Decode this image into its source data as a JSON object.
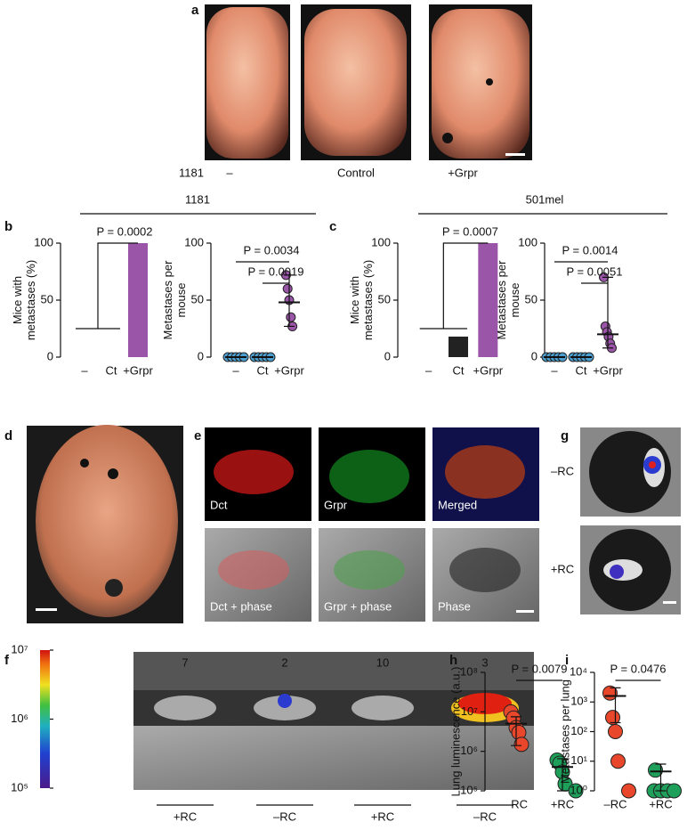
{
  "figure": {
    "panels": [
      "a",
      "b",
      "c",
      "d",
      "e",
      "f",
      "g",
      "h",
      "i"
    ],
    "a_labels": [
      "1181",
      "–",
      "Control",
      "+Grpr"
    ],
    "groups": [
      "1181",
      "501mel"
    ],
    "e_labels": [
      "Dct",
      "Grpr",
      "Merged",
      "Dct + phase",
      "Grpr + phase",
      "Phase"
    ],
    "g_labels": [
      "–RC",
      "+RC"
    ],
    "f_mice": [
      "7",
      "2",
      "10",
      "3"
    ],
    "f_groups": [
      "+RC",
      "–RC",
      "+RC",
      "–RC"
    ],
    "f_colorbar": [
      {
        "value": 10000000,
        "label": "10⁷"
      },
      {
        "value": 1000000,
        "label": "10⁶"
      },
      {
        "value": 100000,
        "label": "10⁵"
      }
    ]
  },
  "chart_data": [
    {
      "type": "bar",
      "ylabel": [
        "Mice with",
        "metastases (%)"
      ],
      "categories": [
        "–",
        "Ct",
        "+Grpr"
      ],
      "values": [
        0,
        0,
        100
      ],
      "colors": [
        "#222222",
        "#222222",
        "#9b55a8"
      ],
      "ylim": [
        0,
        100
      ],
      "yticks": [
        0,
        50,
        100
      ],
      "annotations": [
        "P = 0.0002"
      ]
    },
    {
      "type": "dot",
      "ylabel": [
        "Metastases per",
        "mouse"
      ],
      "categories": [
        "–",
        "Ct",
        "+Grpr"
      ],
      "points": [
        [
          0,
          0,
          0,
          0,
          0
        ],
        [
          0,
          0,
          0,
          0,
          0
        ],
        [
          72,
          60,
          50,
          35,
          27
        ]
      ],
      "center": [
        0,
        0,
        48
      ],
      "range": [
        [
          0,
          0
        ],
        [
          0,
          0
        ],
        [
          27,
          72
        ]
      ],
      "color": "#9b55a8",
      "zero_color": "#4a9fd0",
      "ylim": [
        0,
        100
      ],
      "yticks": [
        0,
        50,
        100
      ],
      "annotations": [
        "P = 0.0034",
        "P = 0.0019"
      ]
    },
    {
      "type": "bar",
      "ylabel": [
        "Mice with",
        "metastases (%)"
      ],
      "categories": [
        "–",
        "Ct",
        "+Grpr"
      ],
      "values": [
        0,
        18,
        100
      ],
      "colors": [
        "#222222",
        "#222222",
        "#9b55a8"
      ],
      "ylim": [
        0,
        100
      ],
      "yticks": [
        0,
        50,
        100
      ],
      "annotations": [
        "P = 0.0007"
      ]
    },
    {
      "type": "dot",
      "ylabel": [
        "Metastases per",
        "mouse"
      ],
      "categories": [
        "–",
        "Ct",
        "+Grpr"
      ],
      "points": [
        [
          0,
          0,
          0,
          0,
          0
        ],
        [
          0,
          0,
          0,
          0,
          0
        ],
        [
          70,
          27,
          22,
          18,
          12,
          8
        ]
      ],
      "center": [
        0,
        0,
        20
      ],
      "range": [
        [
          0,
          0
        ],
        [
          0,
          0
        ],
        [
          8,
          70
        ]
      ],
      "color": "#9b55a8",
      "zero_color": "#4a9fd0",
      "ylim": [
        0,
        100
      ],
      "yticks": [
        0,
        50,
        100
      ],
      "annotations": [
        "P = 0.0014",
        "P = 0.0051"
      ]
    },
    {
      "type": "dot",
      "log": true,
      "ylabel": [
        "Lung luminescence (a.u.)"
      ],
      "categories": [
        "–RC",
        "+RC"
      ],
      "points": [
        [
          10000000,
          7000000,
          4000000,
          3000000,
          1500000
        ],
        [
          600000,
          500000,
          300000,
          150000,
          100000
        ]
      ],
      "center": [
        5000000,
        400000
      ],
      "range": [
        [
          1400000,
          7500000
        ],
        [
          100000,
          650000
        ]
      ],
      "colors": [
        "#e8472c",
        "#1fa05a"
      ],
      "ylim": [
        100000,
        100000000
      ],
      "yticks": [
        {
          "value": 100000,
          "label": "10⁵"
        },
        {
          "value": 1000000,
          "label": "10⁶"
        },
        {
          "value": 10000000,
          "label": "10⁷"
        },
        {
          "value": 100000000,
          "label": "10⁸"
        }
      ],
      "annotations": [
        "P = 0.0079"
      ]
    },
    {
      "type": "dot",
      "log": true,
      "ylabel": [
        "Metastases per lung"
      ],
      "categories": [
        "–RC",
        "+RC"
      ],
      "points": [
        [
          2000,
          300,
          100,
          10,
          1
        ],
        [
          5,
          1,
          1,
          1,
          1
        ]
      ],
      "center": [
        1600,
        4.5
      ],
      "range": [
        [
          200,
          3000
        ],
        [
          1,
          8
        ]
      ],
      "colors": [
        "#e8472c",
        "#1fa05a"
      ],
      "ylim": [
        1,
        10000
      ],
      "yticks": [
        {
          "value": 1,
          "label": "10⁰"
        },
        {
          "value": 10,
          "label": "10¹"
        },
        {
          "value": 100,
          "label": "10²"
        },
        {
          "value": 1000,
          "label": "10³"
        },
        {
          "value": 10000,
          "label": "10⁴"
        }
      ],
      "annotations": [
        "P = 0.0476"
      ]
    }
  ]
}
